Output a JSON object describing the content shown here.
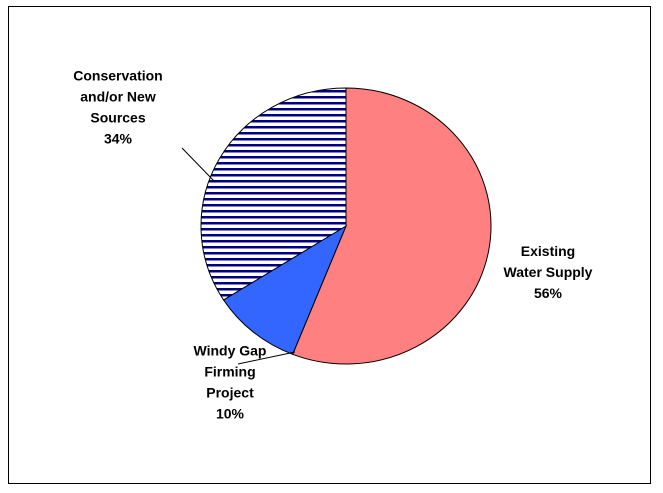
{
  "chart_data": {
    "type": "pie",
    "title": "",
    "slices": [
      {
        "label_lines": [
          "Existing",
          "Water Supply"
        ],
        "value_label": "56%",
        "value": 56,
        "color": "#ff8080",
        "pattern": "solid"
      },
      {
        "label_lines": [
          "Windy Gap",
          "Firming",
          "Project"
        ],
        "value_label": "10%",
        "value": 10,
        "color": "#3366ff",
        "pattern": "solid"
      },
      {
        "label_lines": [
          "Conservation",
          "and/or New",
          "Sources"
        ],
        "value_label": "34%",
        "value": 34,
        "color": "#000080",
        "pattern": "horizontal-stripes"
      }
    ],
    "legend": "none"
  }
}
